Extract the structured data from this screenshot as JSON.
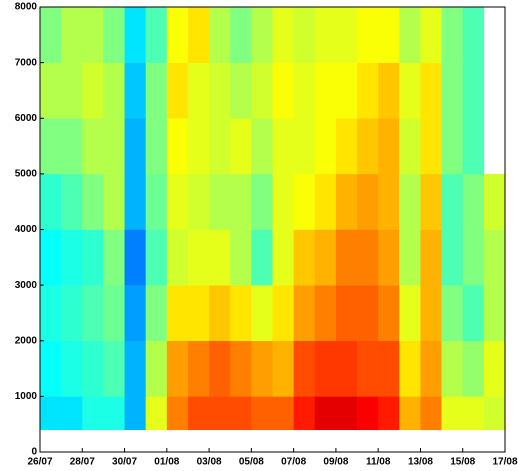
{
  "chart_data": {
    "type": "heatmap",
    "colormap": "jet",
    "zlim": [
      0,
      1
    ],
    "xbins": [
      0,
      1,
      2,
      3,
      4,
      5,
      6,
      7,
      8,
      9,
      10,
      11,
      12,
      13,
      14,
      15,
      16,
      17,
      18,
      19,
      20,
      21,
      22
    ],
    "ybins": [
      400,
      1000,
      2000,
      3000,
      4000,
      5000,
      6000,
      7000,
      8000
    ],
    "z": [
      [
        0.35,
        0.35,
        0.4,
        0.4,
        0.3,
        0.6,
        0.75,
        0.8,
        0.8,
        0.8,
        0.78,
        0.78,
        0.85,
        0.9,
        0.9,
        0.88,
        0.85,
        0.7,
        0.75,
        0.6,
        0.6,
        0.58
      ],
      [
        0.38,
        0.4,
        0.42,
        0.45,
        0.3,
        0.55,
        0.72,
        0.75,
        0.78,
        0.75,
        0.72,
        0.7,
        0.8,
        0.82,
        0.82,
        0.8,
        0.8,
        0.65,
        0.72,
        0.55,
        0.52,
        0.6
      ],
      [
        0.4,
        0.42,
        0.45,
        0.48,
        0.28,
        0.5,
        0.65,
        0.65,
        0.68,
        0.65,
        0.6,
        0.65,
        0.72,
        0.75,
        0.78,
        0.78,
        0.75,
        0.6,
        0.7,
        0.5,
        0.45,
        0.55
      ],
      [
        0.38,
        0.4,
        0.42,
        0.5,
        0.25,
        0.45,
        0.58,
        0.6,
        0.6,
        0.55,
        0.45,
        0.6,
        0.68,
        0.7,
        0.75,
        0.75,
        0.72,
        0.55,
        0.7,
        0.45,
        0.5,
        0.55
      ],
      [
        0.42,
        0.45,
        0.5,
        0.55,
        0.3,
        0.48,
        0.6,
        0.58,
        0.55,
        0.55,
        0.5,
        0.6,
        0.62,
        0.65,
        0.7,
        0.72,
        0.7,
        0.55,
        0.68,
        0.45,
        0.5,
        0.58
      ],
      [
        0.5,
        0.5,
        0.55,
        0.55,
        0.3,
        0.5,
        0.62,
        0.6,
        0.58,
        0.6,
        0.55,
        0.6,
        0.6,
        0.62,
        0.65,
        0.68,
        0.7,
        0.58,
        0.65,
        0.5,
        0.45,
        null
      ],
      [
        0.55,
        0.55,
        0.58,
        0.55,
        0.32,
        0.5,
        0.65,
        0.6,
        0.58,
        0.55,
        0.58,
        0.62,
        0.6,
        0.62,
        0.62,
        0.65,
        0.68,
        0.6,
        0.65,
        0.5,
        0.45,
        null
      ],
      [
        0.5,
        0.55,
        0.55,
        0.5,
        0.35,
        0.45,
        0.62,
        0.65,
        0.55,
        0.5,
        0.55,
        0.6,
        0.58,
        0.6,
        0.6,
        0.62,
        0.62,
        0.55,
        0.6,
        0.5,
        0.45,
        null
      ]
    ],
    "xlim": [
      0,
      22
    ],
    "xticks": [
      {
        "value": 0,
        "label": "26/07"
      },
      {
        "value": 2,
        "label": "28/07"
      },
      {
        "value": 4,
        "label": "30/07"
      },
      {
        "value": 6,
        "label": "01/08"
      },
      {
        "value": 8,
        "label": "03/08"
      },
      {
        "value": 10,
        "label": "05/08"
      },
      {
        "value": 12,
        "label": "07/08"
      },
      {
        "value": 14,
        "label": "09/08"
      },
      {
        "value": 16,
        "label": "11/08"
      },
      {
        "value": 18,
        "label": "13/08"
      },
      {
        "value": 20,
        "label": "15/08"
      },
      {
        "value": 22,
        "label": "17/08"
      }
    ],
    "ylim": [
      0,
      8000
    ],
    "yticks": [
      0,
      1000,
      2000,
      3000,
      4000,
      5000,
      6000,
      7000,
      8000
    ]
  }
}
